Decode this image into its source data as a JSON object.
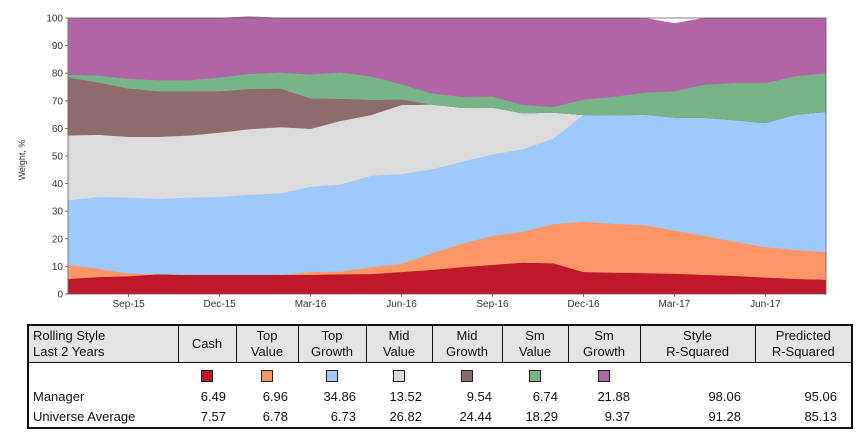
{
  "colors": {
    "cash": "#c0182b",
    "top_value": "#fc9666",
    "top_growth": "#9fc9fb",
    "mid_value": "#dcdcdc",
    "mid_growth": "#8e6b6c",
    "sm_value": "#77b589",
    "sm_growth": "#b065a6"
  },
  "chart_data": {
    "type": "area",
    "stacked": true,
    "ylabel": "Weight, %",
    "ylim": [
      0,
      100
    ],
    "yticks": [
      "0",
      "10",
      "20",
      "30",
      "40",
      "50",
      "60",
      "70",
      "80",
      "90",
      "100"
    ],
    "x": [
      0,
      1,
      2,
      3,
      4,
      5,
      6,
      7,
      8,
      9,
      10,
      11,
      12,
      13,
      14,
      15,
      16,
      17,
      18,
      19,
      20,
      21,
      22,
      23,
      24,
      25
    ],
    "xlim": [
      0,
      25
    ],
    "xticks": [
      {
        "label": "Sep-15",
        "pos": 2
      },
      {
        "label": "Dec-15",
        "pos": 5
      },
      {
        "label": "Mar-16",
        "pos": 8
      },
      {
        "label": "Jun-16",
        "pos": 11
      },
      {
        "label": "Sep-16",
        "pos": 14
      },
      {
        "label": "Dec-16",
        "pos": 17
      },
      {
        "label": "Mar-17",
        "pos": 20
      },
      {
        "label": "Jun-17",
        "pos": 23
      }
    ],
    "series": [
      {
        "name": "Cash",
        "color_key": "cash",
        "values": [
          5.5,
          6.2,
          6.5,
          7.2,
          7.0,
          7.0,
          7.0,
          7.0,
          7.0,
          7.2,
          7.3,
          8.0,
          8.8,
          9.8,
          10.6,
          11.4,
          11.2,
          8.0,
          7.8,
          7.6,
          7.4,
          7.0,
          6.6,
          6.0,
          5.5,
          5.2
        ]
      },
      {
        "name": "Top Value",
        "color_key": "top_value",
        "values": [
          5.0,
          3.0,
          1.0,
          0.0,
          0.0,
          0.0,
          0.0,
          0.0,
          1.0,
          1.0,
          2.5,
          3.0,
          6.0,
          8.5,
          10.5,
          11.2,
          14.2,
          18.2,
          17.7,
          17.4,
          15.6,
          14.0,
          12.4,
          11.0,
          10.5,
          10.0
        ]
      },
      {
        "name": "Top Growth",
        "color_key": "top_growth",
        "values": [
          23.5,
          26.0,
          27.5,
          27.3,
          28.0,
          28.2,
          29.0,
          29.5,
          30.9,
          31.6,
          33.1,
          32.5,
          30.4,
          29.7,
          29.5,
          29.9,
          30.9,
          38.7,
          39.3,
          40.0,
          41.0,
          42.9,
          44.0,
          45.0,
          49.0,
          50.8
        ]
      },
      {
        "name": "Mid Value",
        "color_key": "mid_value",
        "values": [
          23.5,
          22.5,
          22.0,
          22.5,
          22.5,
          23.3,
          23.8,
          24.0,
          21.0,
          23.0,
          22.0,
          25.0,
          23.5,
          19.5,
          17.0,
          13.0,
          9.5,
          0.0,
          0.0,
          0.0,
          0.0,
          0.0,
          0.0,
          0.0,
          0.0,
          0.0
        ]
      },
      {
        "name": "Mid Growth",
        "color_key": "mid_growth",
        "values": [
          21.0,
          19.0,
          17.5,
          16.5,
          16.0,
          15.0,
          14.5,
          14.0,
          11.0,
          8.0,
          5.5,
          2.0,
          0.0,
          0.0,
          0.0,
          0.0,
          0.0,
          0.0,
          0.0,
          0.0,
          0.0,
          0.0,
          0.0,
          0.0,
          0.0,
          0.0
        ]
      },
      {
        "name": "Sm Value",
        "color_key": "sm_value",
        "values": [
          1.0,
          2.5,
          3.5,
          4.0,
          4.0,
          5.0,
          5.5,
          5.8,
          8.7,
          9.5,
          8.5,
          5.5,
          4.0,
          4.0,
          4.0,
          3.0,
          2.0,
          5.6,
          6.7,
          8.0,
          9.5,
          12.0,
          13.5,
          14.5,
          14.0,
          14.0
        ]
      },
      {
        "name": "Sm Growth",
        "color_key": "sm_growth",
        "values": [
          20.5,
          20.8,
          22.0,
          22.5,
          22.5,
          21.5,
          20.7,
          19.7,
          20.4,
          19.7,
          21.1,
          24.0,
          27.3,
          28.5,
          28.4,
          31.5,
          32.2,
          29.5,
          28.5,
          27.0,
          24.5,
          24.1,
          23.5,
          23.5,
          21.0,
          20.0
        ]
      }
    ]
  },
  "table": {
    "header_line1": "Rolling Style",
    "header_line2": "Last 2 Years",
    "columns": [
      {
        "line1": "Cash",
        "line2": "",
        "color_key": "cash"
      },
      {
        "line1": "Top",
        "line2": "Value",
        "color_key": "top_value"
      },
      {
        "line1": "Top",
        "line2": "Growth",
        "color_key": "top_growth"
      },
      {
        "line1": "Mid",
        "line2": "Value",
        "color_key": "mid_value"
      },
      {
        "line1": "Mid",
        "line2": "Growth",
        "color_key": "mid_growth"
      },
      {
        "line1": "Sm",
        "line2": "Value",
        "color_key": "sm_value"
      },
      {
        "line1": "Sm",
        "line2": "Growth",
        "color_key": "sm_growth"
      }
    ],
    "stat_columns": [
      {
        "line1": "Style",
        "line2": "R-Squared"
      },
      {
        "line1": "Predicted",
        "line2": "R-Squared"
      }
    ],
    "rows": [
      {
        "label": "Manager",
        "values": [
          "6.49",
          "6.96",
          "34.86",
          "13.52",
          "9.54",
          "6.74",
          "21.88"
        ],
        "stats": [
          "98.06",
          "95.06"
        ]
      },
      {
        "label": "Universe Average",
        "values": [
          "7.57",
          "6.78",
          "6.73",
          "26.82",
          "24.44",
          "18.29",
          "9.37"
        ],
        "stats": [
          "91.28",
          "85.13"
        ]
      }
    ]
  }
}
